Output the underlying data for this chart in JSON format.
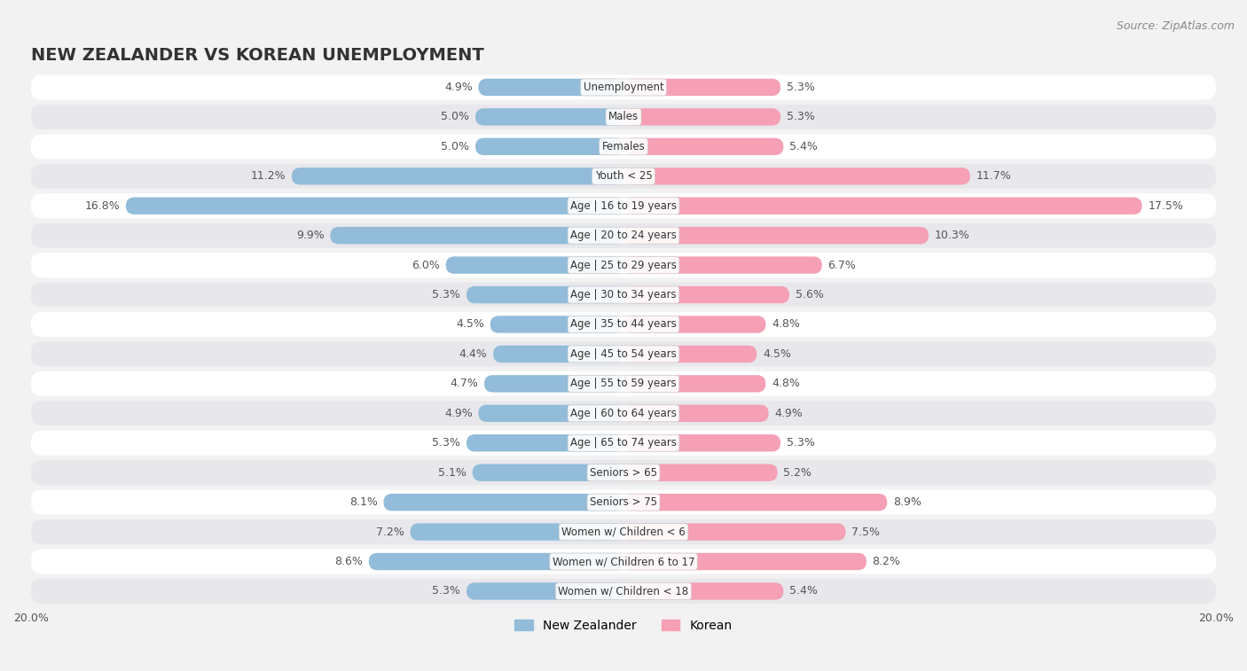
{
  "title": "NEW ZEALANDER VS KOREAN UNEMPLOYMENT",
  "source": "Source: ZipAtlas.com",
  "categories": [
    "Unemployment",
    "Males",
    "Females",
    "Youth < 25",
    "Age | 16 to 19 years",
    "Age | 20 to 24 years",
    "Age | 25 to 29 years",
    "Age | 30 to 34 years",
    "Age | 35 to 44 years",
    "Age | 45 to 54 years",
    "Age | 55 to 59 years",
    "Age | 60 to 64 years",
    "Age | 65 to 74 years",
    "Seniors > 65",
    "Seniors > 75",
    "Women w/ Children < 6",
    "Women w/ Children 6 to 17",
    "Women w/ Children < 18"
  ],
  "nz_values": [
    4.9,
    5.0,
    5.0,
    11.2,
    16.8,
    9.9,
    6.0,
    5.3,
    4.5,
    4.4,
    4.7,
    4.9,
    5.3,
    5.1,
    8.1,
    7.2,
    8.6,
    5.3
  ],
  "kr_values": [
    5.3,
    5.3,
    5.4,
    11.7,
    17.5,
    10.3,
    6.7,
    5.6,
    4.8,
    4.5,
    4.8,
    4.9,
    5.3,
    5.2,
    8.9,
    7.5,
    8.2,
    5.4
  ],
  "nz_color": "#92bcd9",
  "kr_color": "#f5a0b5",
  "bar_height": 0.58,
  "xlim": 20.0,
  "background_color": "#f2f2f2",
  "row_color_odd": "#ffffff",
  "row_color_even": "#e8e8ec",
  "label_color": "#555555",
  "title_fontsize": 14,
  "source_fontsize": 9,
  "bar_label_fontsize": 9,
  "cat_label_fontsize": 8.5,
  "axis_label_fontsize": 9,
  "legend_nz": "New Zealander",
  "legend_kr": "Korean"
}
